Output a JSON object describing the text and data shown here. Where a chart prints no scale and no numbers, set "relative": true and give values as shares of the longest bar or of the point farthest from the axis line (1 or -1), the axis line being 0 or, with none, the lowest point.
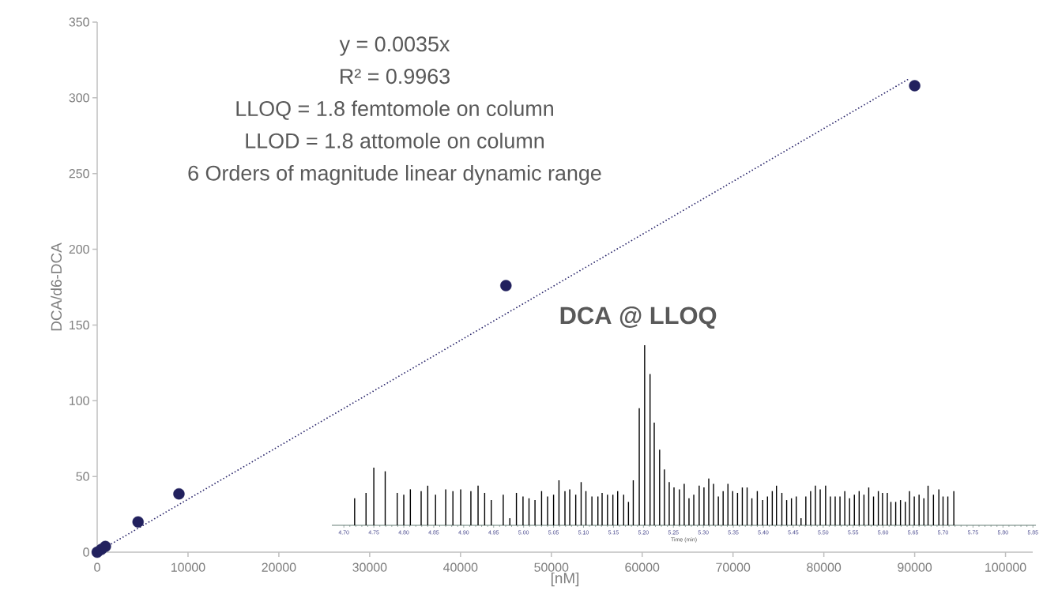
{
  "chart_data": [
    {
      "type": "scatter",
      "xlabel": "[nM]",
      "ylabel": "DCA/d6-DCA",
      "annotations": [
        "y = 0.0035x",
        "R² = 0.9963",
        "LLOQ =  1.8 femtomole on column",
        "LLOD = 1.8 attomole on column",
        "6 Orders of magnitude linear dynamic range"
      ],
      "xlim": [
        0,
        103000
      ],
      "ylim": [
        0,
        350
      ],
      "xticks": [
        0,
        10000,
        20000,
        30000,
        40000,
        50000,
        60000,
        70000,
        80000,
        90000,
        100000
      ],
      "yticks": [
        0,
        50,
        100,
        150,
        200,
        250,
        300,
        350
      ],
      "series": [
        {
          "type": "scatter",
          "marker": "circle",
          "color": "#22215e",
          "x": [
            0,
            90,
            450,
            900,
            4500,
            9000,
            45000,
            90000
          ],
          "values": [
            0,
            null,
            1.8,
            3.8,
            20,
            38.5,
            176,
            308
          ]
        },
        {
          "type": "line",
          "marker": "none",
          "line_style": "dotted",
          "color": "#2e2a6e",
          "x": [
            0,
            89500
          ],
          "values": [
            0,
            313
          ]
        }
      ]
    },
    {
      "type": "bar",
      "relative": true,
      "title": "DCA @ LLOQ",
      "xlabel": "Time (min)",
      "color": "#000000",
      "xlim": [
        4.68,
        5.855
      ],
      "xticks": [
        {
          "value": 4.7,
          "label": "4.70"
        },
        {
          "value": 4.75,
          "label": "4.75"
        },
        {
          "value": 4.8,
          "label": "4.80"
        },
        {
          "value": 4.85,
          "label": "4.85"
        },
        {
          "value": 4.9,
          "label": "4.90"
        },
        {
          "value": 4.95,
          "label": "4.95"
        },
        {
          "value": 5.0,
          "label": "5.00"
        },
        {
          "value": 5.05,
          "label": "5.05"
        },
        {
          "value": 5.1,
          "label": "5.10"
        },
        {
          "value": 5.15,
          "label": "5.15"
        },
        {
          "value": 5.2,
          "label": "5.20"
        },
        {
          "value": 5.25,
          "label": "5.25"
        },
        {
          "value": 5.3,
          "label": "5.30"
        },
        {
          "value": 5.35,
          "label": "5.35"
        },
        {
          "value": 5.4,
          "label": "5.40"
        },
        {
          "value": 5.45,
          "label": "5.45"
        },
        {
          "value": 5.5,
          "label": "5.50"
        },
        {
          "value": 5.55,
          "label": "5.55"
        },
        {
          "value": 5.6,
          "label": "5.60"
        },
        {
          "value": 5.65,
          "label": "5.65"
        },
        {
          "value": 5.7,
          "label": "5.70"
        },
        {
          "value": 5.75,
          "label": "5.75"
        },
        {
          "value": 5.8,
          "label": "5.80"
        },
        {
          "value": 5.85,
          "label": "5.85"
        }
      ],
      "x": [
        4.718,
        4.737,
        4.75,
        4.769,
        4.789,
        4.8,
        4.811,
        4.829,
        4.84,
        4.853,
        4.87,
        4.882,
        4.895,
        4.912,
        4.924,
        4.935,
        4.946,
        4.966,
        4.977,
        4.988,
        4.999,
        5.009,
        5.019,
        5.03,
        5.04,
        5.05,
        5.059,
        5.069,
        5.077,
        5.087,
        5.096,
        5.104,
        5.114,
        5.124,
        5.131,
        5.14,
        5.149,
        5.157,
        5.167,
        5.175,
        5.183,
        5.193,
        5.202,
        5.211,
        5.218,
        5.227,
        5.235,
        5.243,
        5.251,
        5.26,
        5.268,
        5.276,
        5.284,
        5.293,
        5.301,
        5.309,
        5.317,
        5.325,
        5.333,
        5.341,
        5.349,
        5.357,
        5.365,
        5.373,
        5.381,
        5.39,
        5.399,
        5.407,
        5.415,
        5.422,
        5.431,
        5.439,
        5.447,
        5.455,
        5.463,
        5.471,
        5.479,
        5.487,
        5.495,
        5.504,
        5.512,
        5.52,
        5.528,
        5.536,
        5.544,
        5.552,
        5.56,
        5.568,
        5.576,
        5.584,
        5.592,
        5.599,
        5.607,
        5.613,
        5.621,
        5.629,
        5.637,
        5.644,
        5.652,
        5.66,
        5.668,
        5.675,
        5.684,
        5.693,
        5.7,
        5.708,
        5.718
      ],
      "values": [
        0.15,
        0.18,
        0.32,
        0.3,
        0.18,
        0.17,
        0.2,
        0.19,
        0.22,
        0.17,
        0.2,
        0.19,
        0.2,
        0.19,
        0.22,
        0.18,
        0.14,
        0.17,
        0.04,
        0.18,
        0.16,
        0.15,
        0.14,
        0.19,
        0.16,
        0.17,
        0.25,
        0.19,
        0.2,
        0.17,
        0.24,
        0.19,
        0.16,
        0.16,
        0.18,
        0.17,
        0.17,
        0.19,
        0.17,
        0.13,
        0.25,
        0.65,
        1,
        0.84,
        0.57,
        0.42,
        0.31,
        0.24,
        0.21,
        0.2,
        0.23,
        0.15,
        0.17,
        0.22,
        0.21,
        0.26,
        0.23,
        0.16,
        0.19,
        0.23,
        0.19,
        0.18,
        0.21,
        0.21,
        0.15,
        0.19,
        0.14,
        0.16,
        0.19,
        0.22,
        0.18,
        0.14,
        0.15,
        0.16,
        0.04,
        0.16,
        0.19,
        0.22,
        0.2,
        0.22,
        0.16,
        0.16,
        0.16,
        0.19,
        0.15,
        0.17,
        0.19,
        0.17,
        0.21,
        0.16,
        0.19,
        0.18,
        0.18,
        0.13,
        0.13,
        0.14,
        0.13,
        0.19,
        0.16,
        0.17,
        0.15,
        0.22,
        0.17,
        0.2,
        0.16,
        0.16,
        0.19
      ]
    }
  ]
}
